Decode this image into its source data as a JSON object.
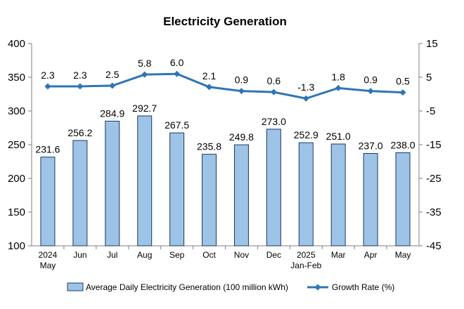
{
  "chart_data": {
    "type": "bar",
    "title": "Electricity Generation",
    "categories": [
      [
        "2024",
        "May"
      ],
      [
        "Jun"
      ],
      [
        "Jul"
      ],
      [
        "Aug"
      ],
      [
        "Sep"
      ],
      [
        "Oct"
      ],
      [
        "Nov"
      ],
      [
        "Dec"
      ],
      [
        "2025",
        "Jan-Feb"
      ],
      [
        "Mar"
      ],
      [
        "Apr"
      ],
      [
        "May"
      ]
    ],
    "series": [
      {
        "name": "Average Daily Electricity Generation (100 million kWh)",
        "type": "bar",
        "axis": "left",
        "values": [
          231.6,
          256.2,
          284.9,
          292.7,
          267.5,
          235.8,
          249.8,
          273.0,
          252.9,
          251.0,
          237.0,
          238.0
        ],
        "labels": [
          "231.6",
          "256.2",
          "284.9",
          "292.7",
          "267.5",
          "235.8",
          "249.8",
          "273.0",
          "252.9",
          "251.0",
          "237.0",
          "238.0"
        ]
      },
      {
        "name": "Growth Rate (%)",
        "type": "line",
        "axis": "right",
        "values": [
          2.3,
          2.3,
          2.5,
          5.8,
          6.0,
          2.1,
          0.9,
          0.6,
          -1.3,
          1.8,
          0.9,
          0.5
        ],
        "labels": [
          "2.3",
          "2.3",
          "2.5",
          "5.8",
          "6.0",
          "2.1",
          "0.9",
          "0.6",
          "-1.3",
          "1.8",
          "0.9",
          "0.5"
        ]
      }
    ],
    "y_left": {
      "min": 100,
      "max": 400,
      "ticks": [
        100,
        150,
        200,
        250,
        300,
        350,
        400
      ]
    },
    "y_right": {
      "min": -45,
      "max": 15,
      "ticks": [
        -45,
        -35,
        -25,
        -15,
        -5,
        5,
        15
      ]
    },
    "legend_position": "bottom",
    "colors": {
      "bar_fill": "#9dc3e6",
      "bar_stroke": "#1f3864",
      "line": "#2e75b6",
      "axis": "#7f7f7f"
    }
  }
}
